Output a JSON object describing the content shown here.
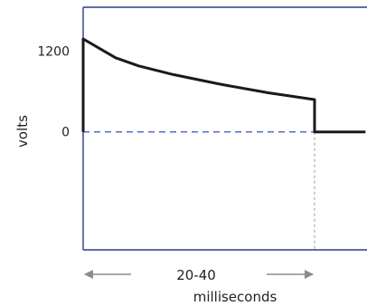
{
  "chart_data": {
    "type": "line",
    "title": "",
    "ylabel": "volts",
    "xlabel": "milliseconds",
    "duration_label": "20-40",
    "y_ticks": [
      {
        "value": 1200,
        "label": "1200"
      },
      {
        "value": 0,
        "label": "0"
      }
    ],
    "ylim": [
      -1750,
      1850
    ],
    "series": [
      {
        "values": [
          {
            "x": 0,
            "y": 0
          },
          {
            "x": 0,
            "y": 1380
          },
          {
            "x": 0.14,
            "y": 1100
          },
          {
            "x": 0.24,
            "y": 980
          },
          {
            "x": 0.39,
            "y": 850
          },
          {
            "x": 0.59,
            "y": 710
          },
          {
            "x": 0.8,
            "y": 580
          },
          {
            "x": 1.0,
            "y": 480
          },
          {
            "x": 1.0,
            "y": 0
          },
          {
            "x": 1.22,
            "y": 0
          }
        ]
      }
    ],
    "reference_lines": {
      "zero_line": "dashed",
      "pulse_end": "dashed"
    },
    "colors": {
      "axes": "#2e3a8c",
      "signal": "#1a1a1a",
      "zero_line": "#3a4fc4",
      "pulse_end_line": "#999999",
      "arrows": "#8c8c8c"
    }
  }
}
